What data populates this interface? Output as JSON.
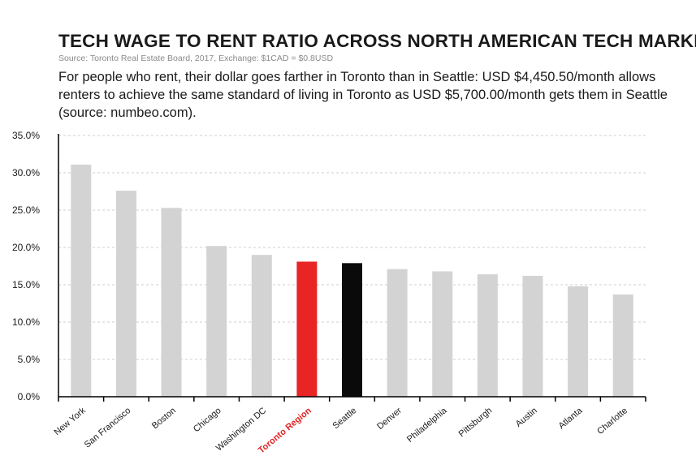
{
  "header": {
    "title": "TECH WAGE TO RENT RATIO ACROSS NORTH AMERICAN TECH MARKETS",
    "source": "Source: Toronto Real Estate Board, 2017, Exchange: $1CAD = $0.8USD",
    "description": "For people who rent, their dollar goes farther in Toronto than in Seattle: USD $4,450.50/month allows renters to achieve the same standard of living in Toronto as USD $5,700.00/month gets them in Seattle (source: numbeo.com)."
  },
  "chart_data": {
    "type": "bar",
    "title": "TECH WAGE TO RENT RATIO ACROSS NORTH AMERICAN TECH MARKETS",
    "categories": [
      "New York",
      "San Francisco",
      "Boston",
      "Chicago",
      "Washington DC",
      "Toronto Region",
      "Seattle",
      "Denver",
      "Philadelphia",
      "Pittsburgh",
      "Austin",
      "Atlanta",
      "Charlotte"
    ],
    "values": [
      31.1,
      27.6,
      25.3,
      20.2,
      19.0,
      18.1,
      17.9,
      17.1,
      16.8,
      16.4,
      16.2,
      14.8,
      13.7
    ],
    "ylim": [
      0,
      35
    ],
    "yticks": [
      "0.0%",
      "5.0%",
      "10.0%",
      "15.0%",
      "20.0%",
      "25.0%",
      "30.0%",
      "35.0%"
    ],
    "ytick_values": [
      0,
      5,
      10,
      15,
      20,
      25,
      30,
      35
    ],
    "grid": true,
    "highlight_category": "Toronto Region",
    "colors": {
      "default": "#d3d3d3",
      "Toronto Region": "#e82424",
      "Seattle": "#0a0a0a",
      "highlight_label": "#e32323",
      "grid": "#cfcfcf"
    }
  }
}
